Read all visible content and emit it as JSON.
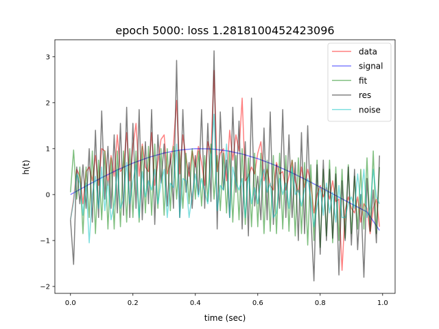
{
  "chart_data": {
    "type": "line",
    "title": "epoch 5000: loss 1.2818100452423096",
    "xlabel": "time (sec)",
    "ylabel": "h(t)",
    "xlim": [
      -0.05,
      1.04
    ],
    "ylim": [
      -2.15,
      3.37
    ],
    "xticks": [
      0.0,
      0.2,
      0.4,
      0.6,
      0.8,
      1.0
    ],
    "xtick_labels": [
      "0.0",
      "0.2",
      "0.4",
      "0.6",
      "0.8",
      "1.0"
    ],
    "yticks": [
      -2,
      -1,
      0,
      1,
      2,
      3
    ],
    "ytick_labels": [
      "−2",
      "−1",
      "0",
      "1",
      "2",
      "3"
    ],
    "grid": false,
    "legend_position": "top-right",
    "series": [
      {
        "name": "data",
        "color": "#ff0000",
        "opacity": 0.5,
        "x": [
          0.0,
          0.01,
          0.02,
          0.03,
          0.04,
          0.05,
          0.06,
          0.07,
          0.08,
          0.09,
          0.1,
          0.11,
          0.12,
          0.13,
          0.14,
          0.15,
          0.16,
          0.17,
          0.18,
          0.19,
          0.2,
          0.21,
          0.22,
          0.23,
          0.24,
          0.25,
          0.26,
          0.27,
          0.28,
          0.29,
          0.3,
          0.31,
          0.32,
          0.33,
          0.34,
          0.35,
          0.36,
          0.37,
          0.38,
          0.39,
          0.4,
          0.41,
          0.42,
          0.43,
          0.44,
          0.45,
          0.46,
          0.47,
          0.48,
          0.49,
          0.5,
          0.51,
          0.52,
          0.53,
          0.54,
          0.55,
          0.56,
          0.57,
          0.58,
          0.59,
          0.6,
          0.61,
          0.62,
          0.63,
          0.64,
          0.65,
          0.66,
          0.67,
          0.68,
          0.69,
          0.7,
          0.71,
          0.72,
          0.73,
          0.74,
          0.75,
          0.76,
          0.77,
          0.78,
          0.79,
          0.8,
          0.81,
          0.82,
          0.83,
          0.84,
          0.85,
          0.86,
          0.87,
          0.88,
          0.89,
          0.9,
          0.91,
          0.92,
          0.93,
          0.94,
          0.95,
          0.96,
          0.97,
          0.98,
          0.99
        ],
        "y": [
          -0.55,
          -0.1,
          0.55,
          0.4,
          -0.2,
          0.5,
          0.6,
          0.3,
          0.85,
          0.2,
          1.0,
          0.95,
          0.2,
          0.85,
          0.4,
          1.3,
          0.5,
          0.6,
          1.35,
          0.3,
          1.05,
          1.55,
          0.4,
          1.1,
          0.6,
          0.5,
          1.35,
          0.2,
          0.7,
          1.2,
          1.3,
          0.45,
          0.7,
          1.1,
          2.05,
          0.45,
          1.3,
          0.8,
          0.4,
          0.95,
          0.6,
          1.05,
          0.7,
          0.2,
          1.15,
          0.9,
          2.7,
          0.5,
          0.9,
          1.0,
          0.3,
          1.4,
          0.75,
          1.3,
          0.95,
          2.1,
          0.3,
          0.4,
          0.6,
          0.45,
          0.9,
          1.15,
          0.3,
          0.55,
          0.2,
          0.1,
          0.7,
          0.45,
          0.5,
          0.1,
          0.4,
          0.75,
          0.3,
          0.05,
          0.6,
          0.15,
          0.55,
          0.25,
          -0.4,
          0.0,
          0.2,
          -0.05,
          0.15,
          -0.1,
          0.3,
          -0.15,
          -0.1,
          -1.65,
          -0.35,
          -0.05,
          -0.3,
          -0.4,
          -0.05,
          -0.6,
          -0.2,
          -0.3,
          -0.85,
          -0.3,
          -0.1,
          -0.7
        ]
      },
      {
        "name": "signal",
        "color": "#0000ff",
        "opacity": 0.5,
        "x": [
          0.0,
          0.05,
          0.1,
          0.15,
          0.2,
          0.25,
          0.3,
          0.35,
          0.4,
          0.45,
          0.5,
          0.55,
          0.6,
          0.65,
          0.7,
          0.75,
          0.8,
          0.85,
          0.9,
          0.95,
          0.99
        ],
        "y": [
          0.0,
          0.187,
          0.368,
          0.536,
          0.685,
          0.809,
          0.905,
          0.969,
          0.999,
          0.995,
          0.955,
          0.883,
          0.782,
          0.654,
          0.505,
          0.339,
          0.162,
          -0.02,
          -0.201,
          -0.377,
          -0.78
        ]
      },
      {
        "name": "fit",
        "color": "#008000",
        "opacity": 0.5,
        "x": [
          0.0,
          0.01,
          0.02,
          0.03,
          0.04,
          0.05,
          0.06,
          0.07,
          0.08,
          0.09,
          0.1,
          0.11,
          0.12,
          0.13,
          0.14,
          0.15,
          0.16,
          0.17,
          0.18,
          0.19,
          0.2,
          0.21,
          0.22,
          0.23,
          0.24,
          0.25,
          0.26,
          0.27,
          0.28,
          0.29,
          0.3,
          0.31,
          0.32,
          0.33,
          0.34,
          0.35,
          0.36,
          0.37,
          0.38,
          0.39,
          0.4,
          0.41,
          0.42,
          0.43,
          0.44,
          0.45,
          0.46,
          0.47,
          0.48,
          0.49,
          0.5,
          0.51,
          0.52,
          0.53,
          0.54,
          0.55,
          0.56,
          0.57,
          0.58,
          0.59,
          0.6,
          0.61,
          0.62,
          0.63,
          0.64,
          0.65,
          0.66,
          0.67,
          0.68,
          0.69,
          0.7,
          0.71,
          0.72,
          0.73,
          0.74,
          0.75,
          0.76,
          0.77,
          0.78,
          0.79,
          0.8,
          0.81,
          0.82,
          0.83,
          0.84,
          0.85,
          0.86,
          0.87,
          0.88,
          0.89,
          0.9,
          0.91,
          0.92,
          0.93,
          0.94,
          0.95,
          0.96,
          0.97,
          0.98,
          0.99
        ],
        "y": [
          0.05,
          0.97,
          -0.1,
          0.6,
          -0.85,
          0.6,
          -0.5,
          0.95,
          -0.85,
          0.75,
          -0.55,
          0.95,
          -0.75,
          0.8,
          -0.75,
          0.95,
          -0.7,
          0.95,
          -0.6,
          1.0,
          -0.5,
          0.95,
          -0.6,
          1.05,
          -0.4,
          1.05,
          -0.45,
          1.1,
          -0.3,
          1.0,
          -0.45,
          1.0,
          -0.35,
          1.05,
          -0.1,
          0.95,
          -0.3,
          0.9,
          -0.2,
          1.0,
          -0.1,
          0.95,
          -0.25,
          0.85,
          -0.15,
          1.1,
          -0.1,
          0.85,
          -0.35,
          0.9,
          -0.4,
          0.95,
          -0.6,
          0.85,
          -0.55,
          1.0,
          -0.65,
          0.8,
          -0.7,
          0.9,
          -0.7,
          0.9,
          -0.85,
          0.75,
          -0.8,
          0.85,
          -0.85,
          0.9,
          -0.75,
          0.85,
          -0.8,
          0.75,
          -0.9,
          0.8,
          -0.85,
          0.7,
          -1.1,
          0.65,
          -1.0,
          0.75,
          -1.15,
          0.55,
          -0.9,
          0.75,
          -1.05,
          0.6,
          -1.0,
          0.55,
          -0.95,
          0.65,
          -0.85,
          0.4,
          -0.75,
          0.55,
          -0.75,
          0.8,
          -0.8,
          0.95,
          -0.85,
          0.6
        ]
      },
      {
        "name": "res",
        "color": "#000000",
        "opacity": 0.5,
        "x": [
          0.0,
          0.01,
          0.02,
          0.03,
          0.04,
          0.05,
          0.06,
          0.07,
          0.08,
          0.09,
          0.1,
          0.11,
          0.12,
          0.13,
          0.14,
          0.15,
          0.16,
          0.17,
          0.18,
          0.19,
          0.2,
          0.21,
          0.22,
          0.23,
          0.24,
          0.25,
          0.26,
          0.27,
          0.28,
          0.29,
          0.3,
          0.31,
          0.32,
          0.33,
          0.34,
          0.35,
          0.36,
          0.37,
          0.38,
          0.39,
          0.4,
          0.41,
          0.42,
          0.43,
          0.44,
          0.45,
          0.46,
          0.47,
          0.48,
          0.49,
          0.5,
          0.51,
          0.52,
          0.53,
          0.54,
          0.55,
          0.56,
          0.57,
          0.58,
          0.59,
          0.6,
          0.61,
          0.62,
          0.63,
          0.64,
          0.65,
          0.66,
          0.67,
          0.68,
          0.69,
          0.7,
          0.71,
          0.72,
          0.73,
          0.74,
          0.75,
          0.76,
          0.77,
          0.78,
          0.79,
          0.8,
          0.81,
          0.82,
          0.83,
          0.84,
          0.85,
          0.86,
          0.87,
          0.88,
          0.89,
          0.9,
          0.91,
          0.92,
          0.93,
          0.94,
          0.95,
          0.96,
          0.97,
          0.98,
          0.99
        ],
        "y": [
          -0.55,
          -1.52,
          0.6,
          -0.2,
          0.65,
          -0.3,
          1.0,
          -0.6,
          1.4,
          -0.5,
          1.82,
          -0.1,
          1.05,
          -0.3,
          1.3,
          -0.4,
          1.55,
          -0.45,
          1.9,
          -0.5,
          1.55,
          -0.3,
          1.85,
          -0.55,
          1.15,
          -0.2,
          1.85,
          -0.65,
          1.3,
          0.25,
          1.1,
          -0.25,
          0.9,
          -0.3,
          2.92,
          -0.5,
          1.85,
          0.05,
          0.7,
          -0.3,
          0.85,
          0.0,
          1.85,
          -0.3,
          1.55,
          -0.15,
          3.13,
          -0.75,
          1.8,
          0.1,
          0.75,
          -0.5,
          1.9,
          0.05,
          1.6,
          -0.75,
          1.15,
          -0.9,
          2.1,
          -0.25,
          0.4,
          -0.55,
          1.45,
          -0.55,
          1.8,
          -0.65,
          0.65,
          -0.3,
          1.85,
          -0.5,
          1.3,
          -0.5,
          0.7,
          -1.0,
          1.35,
          -0.85,
          1.5,
          -0.45,
          -1.88,
          0.65,
          -1.3,
          0.75,
          -1.0,
          0.55,
          -0.95,
          0.45,
          -1.75,
          0.3,
          -1.0,
          0.6,
          -1.1,
          0.55,
          -1.2,
          0.0,
          -1.8,
          0.35,
          -0.8,
          0.1,
          -1.05,
          0.85
        ]
      },
      {
        "name": "noise",
        "color": "#00bfbf",
        "opacity": 0.5,
        "x": [
          0.0,
          0.01,
          0.02,
          0.03,
          0.04,
          0.05,
          0.06,
          0.07,
          0.08,
          0.09,
          0.1,
          0.11,
          0.12,
          0.13,
          0.14,
          0.15,
          0.16,
          0.17,
          0.18,
          0.19,
          0.2,
          0.21,
          0.22,
          0.23,
          0.24,
          0.25,
          0.26,
          0.27,
          0.28,
          0.29,
          0.3,
          0.31,
          0.32,
          0.33,
          0.34,
          0.35,
          0.36,
          0.37,
          0.38,
          0.39,
          0.4,
          0.41,
          0.42,
          0.43,
          0.44,
          0.45,
          0.46,
          0.47,
          0.48,
          0.49,
          0.5,
          0.51,
          0.52,
          0.53,
          0.54,
          0.55,
          0.56,
          0.57,
          0.58,
          0.59,
          0.6,
          0.61,
          0.62,
          0.63,
          0.64,
          0.65,
          0.66,
          0.67,
          0.68,
          0.69,
          0.7,
          0.71,
          0.72,
          0.73,
          0.74,
          0.75,
          0.76,
          0.77,
          0.78,
          0.79,
          0.8,
          0.81,
          0.82,
          0.83,
          0.84,
          0.85,
          0.86,
          0.87,
          0.88,
          0.89,
          0.9,
          0.91,
          0.92,
          0.93,
          0.94,
          0.95,
          0.96,
          0.97,
          0.98,
          0.99
        ],
        "y": [
          -0.55,
          -0.15,
          0.45,
          0.25,
          -0.45,
          0.25,
          -1.05,
          0.0,
          0.4,
          -0.3,
          0.6,
          -0.35,
          0.3,
          -0.55,
          -0.2,
          0.55,
          -0.3,
          -0.1,
          0.7,
          -0.2,
          0.3,
          0.65,
          -0.5,
          0.5,
          -0.05,
          0.3,
          0.1,
          0.55,
          -0.2,
          0.25,
          0.55,
          -0.5,
          0.25,
          0.15,
          1.1,
          -0.5,
          0.35,
          0.3,
          -0.5,
          0.0,
          0.45,
          -0.05,
          0.35,
          0.05,
          -0.2,
          0.75,
          1.75,
          -0.35,
          0.2,
          0.1,
          1.1,
          -0.5,
          0.6,
          0.25,
          0.1,
          0.35,
          -0.5,
          0.45,
          -0.2,
          0.15,
          -0.2,
          0.3,
          0.55,
          0.05,
          0.25,
          -0.5,
          -0.4,
          0.35,
          0.0,
          0.25,
          -0.3,
          0.6,
          0.0,
          0.1,
          -0.25,
          0.1,
          0.35,
          -0.1,
          -0.7,
          -0.25,
          0.15,
          -0.45,
          0.25,
          -0.4,
          0.05,
          -0.6,
          0.2,
          -0.5,
          -0.5,
          -0.2,
          -0.05,
          -0.3,
          0.45,
          -0.2,
          0.55,
          -0.5,
          -0.3,
          0.55,
          -0.05,
          -0.2
        ]
      }
    ]
  }
}
